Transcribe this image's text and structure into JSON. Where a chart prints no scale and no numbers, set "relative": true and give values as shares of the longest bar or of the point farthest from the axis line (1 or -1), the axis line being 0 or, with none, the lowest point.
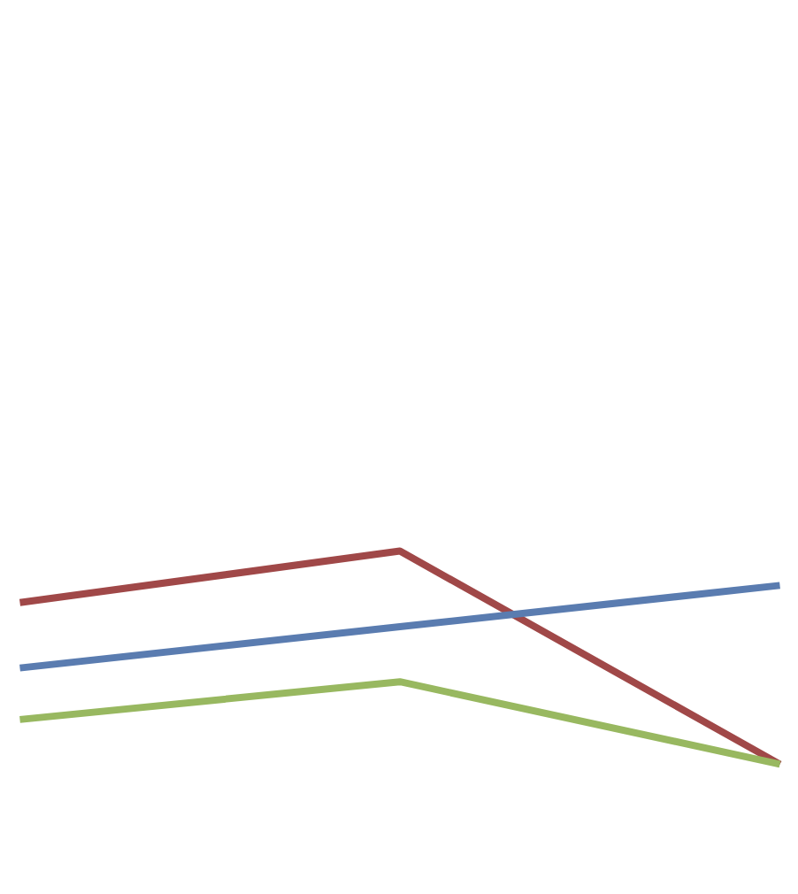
{
  "chart_data": {
    "type": "line",
    "relative": true,
    "categories": [
      null,
      null,
      null
    ],
    "series": [
      {
        "color": "#a04848",
        "values": [
          0.85,
          1,
          0.38
        ]
      },
      {
        "color": "#5a7cb0",
        "values": [
          0.66,
          0.78,
          0.9
        ]
      },
      {
        "color": "#98b860",
        "values": [
          0.51,
          0.62,
          0.38
        ]
      }
    ],
    "line_style": "solid"
  }
}
